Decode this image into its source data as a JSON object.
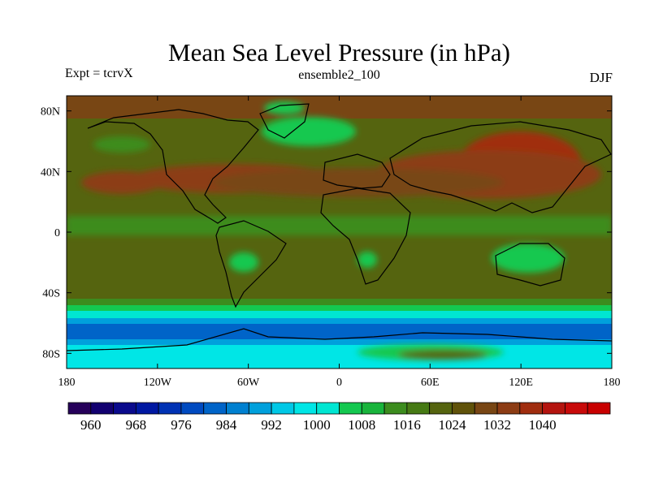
{
  "title": "Mean Sea Level Pressure (in hPa)",
  "left_label": "Expt = tcrvX",
  "center_label": "ensemble2_100",
  "right_label": "DJF",
  "lon_ticks": [
    "180",
    "120W",
    "60W",
    "0",
    "60E",
    "120E",
    "180"
  ],
  "lat_ticks": [
    "80N",
    "40N",
    "0",
    "40S",
    "80S"
  ],
  "colorbar": {
    "colors": [
      "#26005a",
      "#120070",
      "#0a0a8c",
      "#0018a2",
      "#0032b4",
      "#004ac0",
      "#0064c8",
      "#0080d0",
      "#00a0dc",
      "#00c8e6",
      "#00e6e6",
      "#00e6d2",
      "#14c850",
      "#19b43c",
      "#3c8c1e",
      "#467a14",
      "#55640f",
      "#60520a",
      "#784614",
      "#8c3c14",
      "#a02d0f",
      "#b4140f",
      "#c80a0a",
      "#c80000"
    ],
    "labels": [
      "960",
      "968",
      "976",
      "984",
      "992",
      "1000",
      "1008",
      "1016",
      "1024",
      "1032",
      "1040"
    ]
  }
}
